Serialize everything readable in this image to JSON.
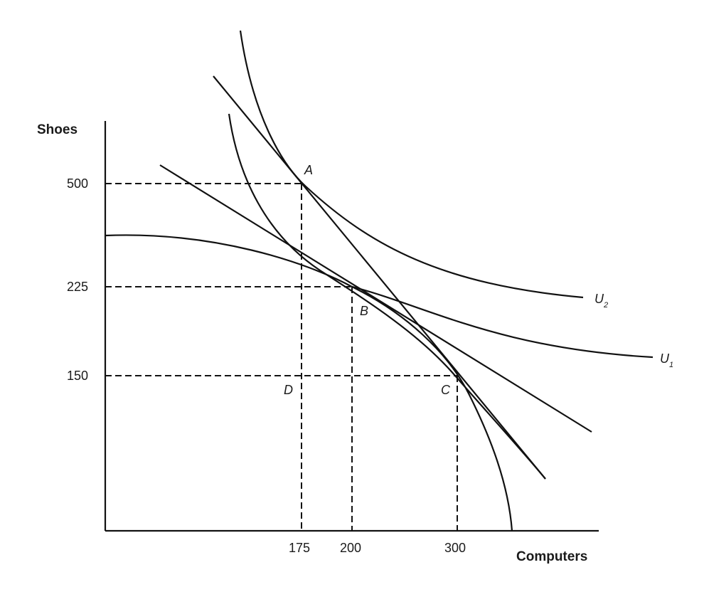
{
  "diagram": {
    "axes": {
      "y_title": "Shoes",
      "x_title": "Computers"
    },
    "ticks": {
      "y": [
        "500",
        "225",
        "150"
      ],
      "x": [
        "175",
        "200",
        "300"
      ]
    },
    "points": {
      "a": "A",
      "b": "B",
      "c": "C",
      "d": "D"
    },
    "curves": {
      "u2": {
        "letter": "U",
        "sub": "2"
      },
      "u1": {
        "letter": "U",
        "sub": "1"
      }
    }
  }
}
